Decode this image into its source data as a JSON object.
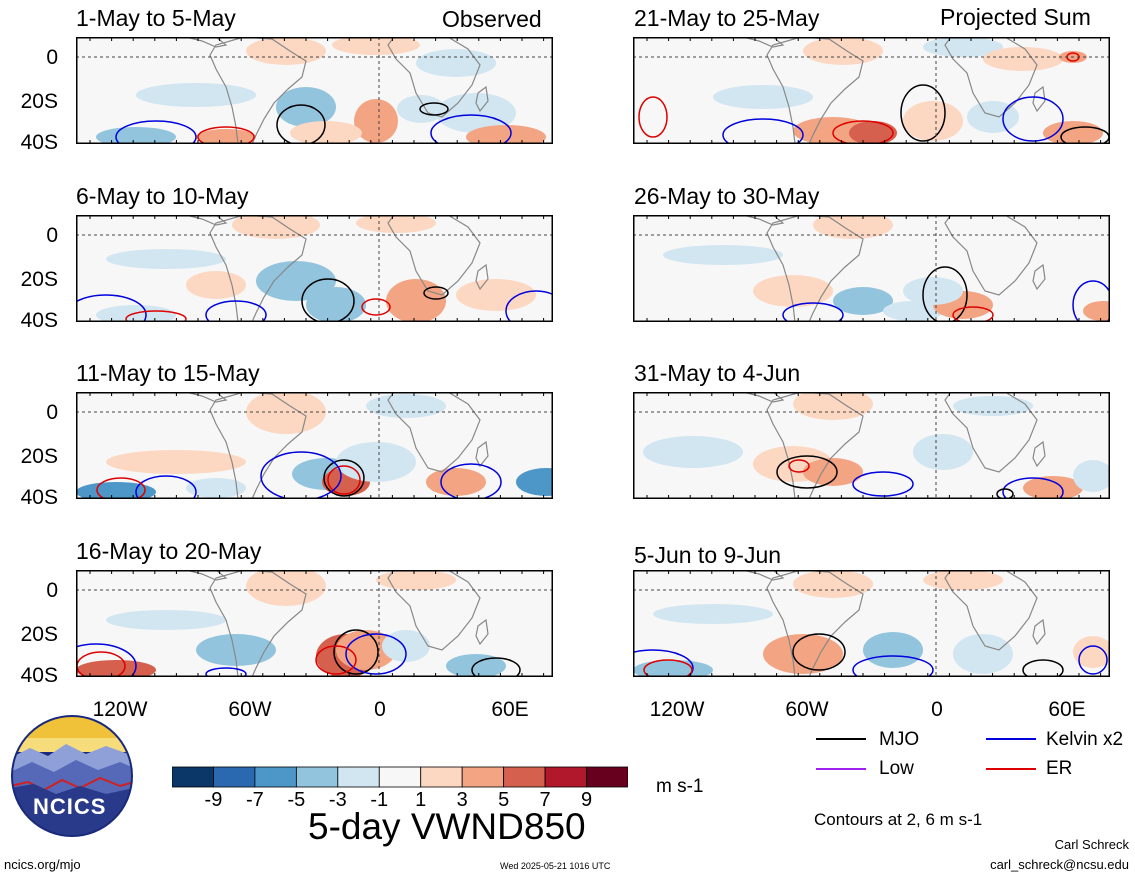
{
  "headers": {
    "left": "Observed",
    "right": "Projected Sum"
  },
  "panels": [
    {
      "title": "1-May to 5-May"
    },
    {
      "title": "6-May to 10-May"
    },
    {
      "title": "11-May to 15-May"
    },
    {
      "title": "16-May to 20-May"
    },
    {
      "title": "21-May to 25-May"
    },
    {
      "title": "26-May to 30-May"
    },
    {
      "title": "31-May to 4-Jun"
    },
    {
      "title": "5-Jun to 9-Jun"
    }
  ],
  "lat_labels": [
    "0",
    "20S",
    "40S"
  ],
  "lon_labels": [
    "120W",
    "60W",
    "0",
    "60E"
  ],
  "legend": [
    {
      "label": "MJO",
      "color": "#000000"
    },
    {
      "label": "Kelvin x2",
      "color": "#0000dd"
    },
    {
      "label": "Low",
      "color": "#a020f0"
    },
    {
      "label": "ER",
      "color": "#dd0000"
    }
  ],
  "contours_note": "Contours at 2, 6 m s-1",
  "colorbar": {
    "labels": [
      "-9",
      "-7",
      "-5",
      "-3",
      "-1",
      "1",
      "3",
      "5",
      "7",
      "9"
    ],
    "colors": [
      "#0b3768",
      "#2a69b0",
      "#4d96c8",
      "#92c4de",
      "#d1e6f1",
      "#f7f7f7",
      "#fcd7c2",
      "#f3a583",
      "#d6604e",
      "#b2182b",
      "#67001f"
    ],
    "units": "m s-1"
  },
  "main_title": "5-day VWND850",
  "logo_text": "NCICS",
  "author": "Carl Schreck",
  "email": "carl_schreck@ncsu.edu",
  "url": "ncics.org/mjo",
  "timestamp": "Wed 2025-05-21 1016 UTC"
}
